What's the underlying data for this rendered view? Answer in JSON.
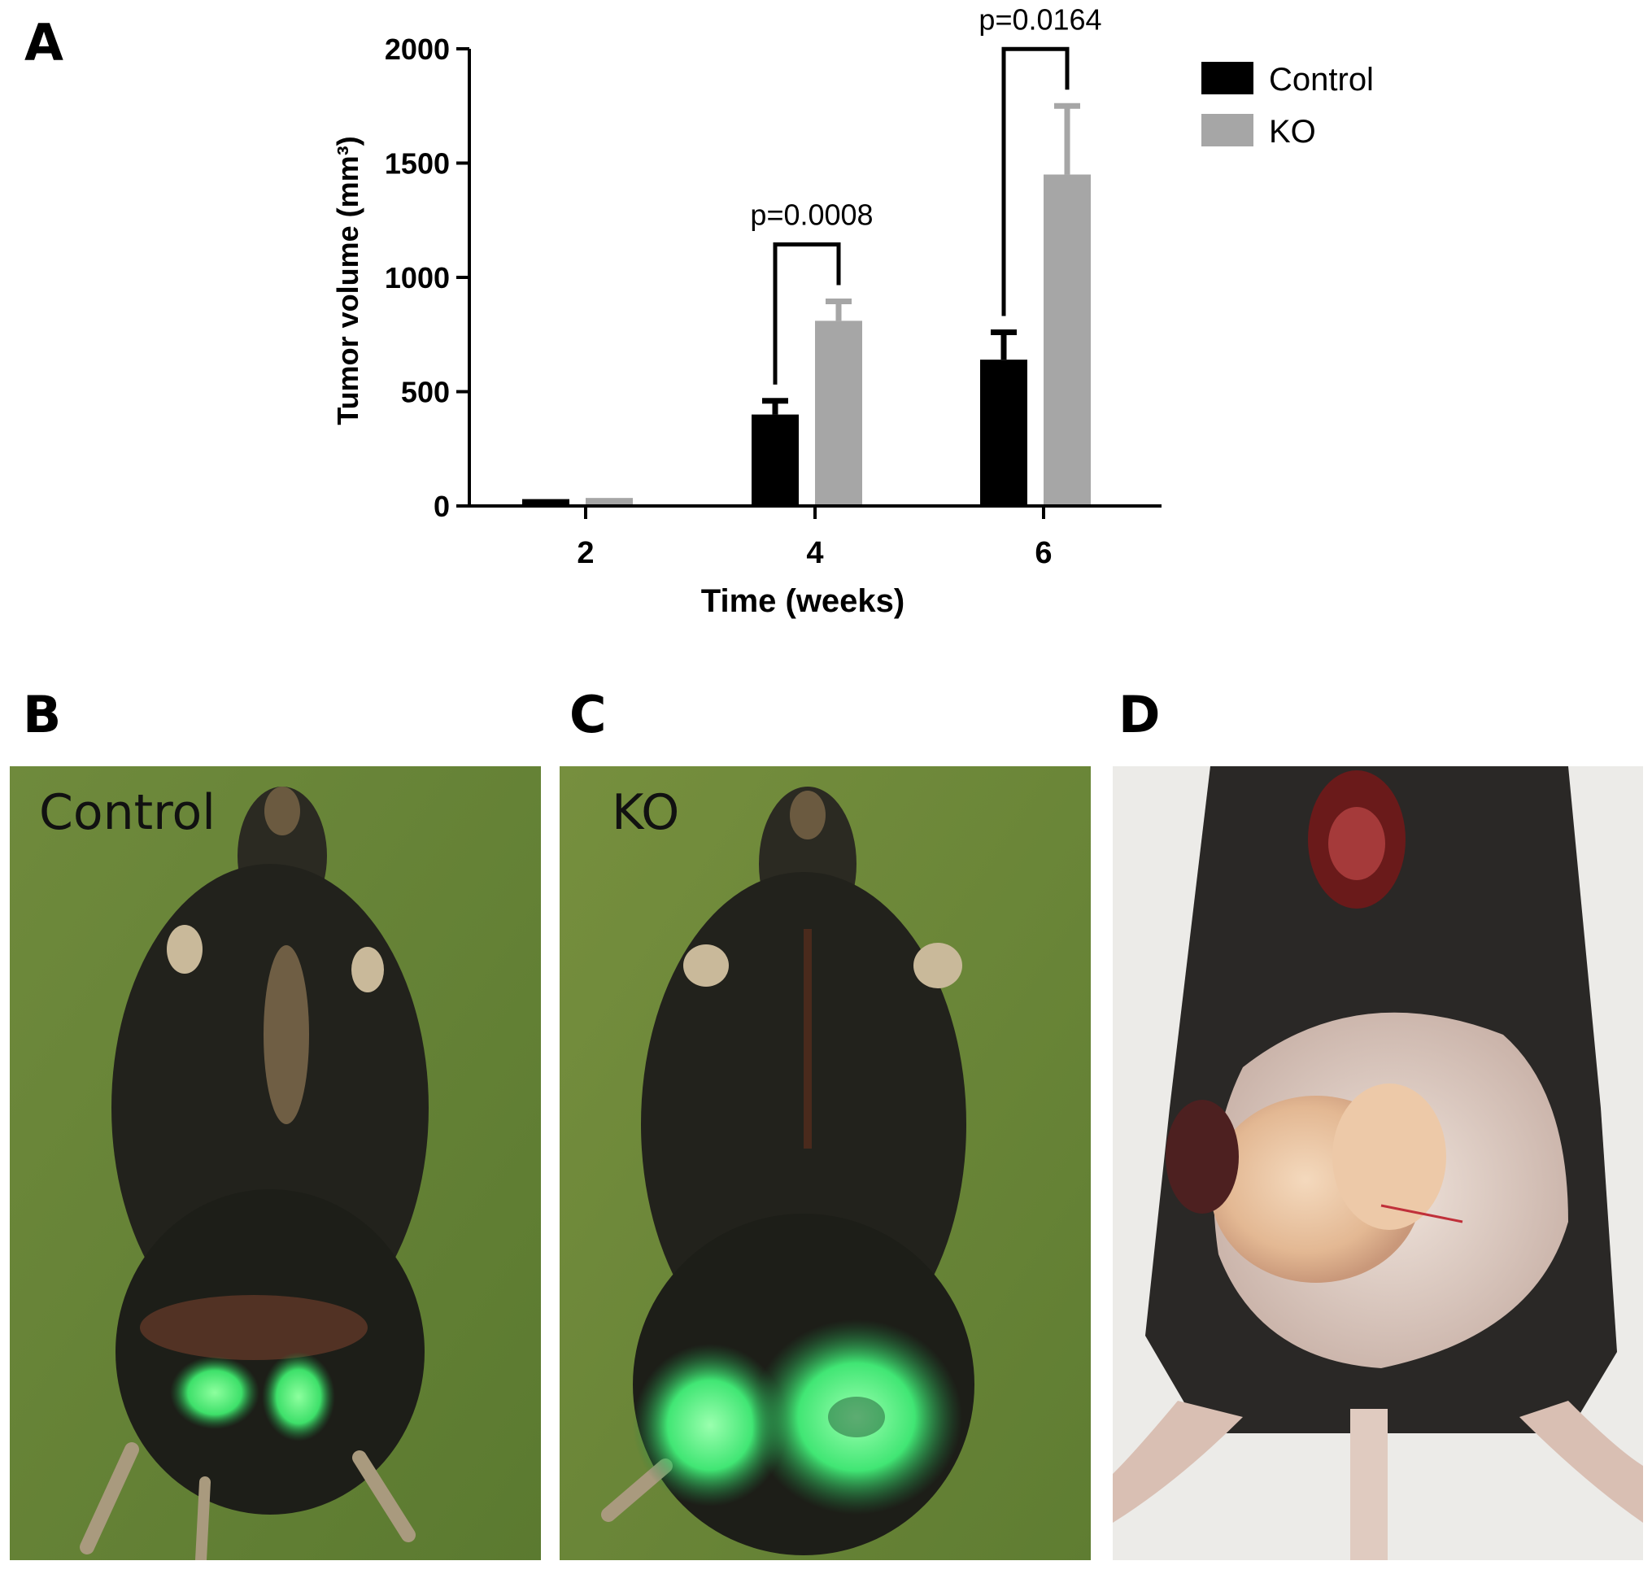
{
  "panels": {
    "a": "A",
    "b": "B",
    "c": "C",
    "d": "D"
  },
  "photo_labels": {
    "b": "Control",
    "c": "KO"
  },
  "colors": {
    "control": "#000000",
    "ko": "#a6a6a6"
  },
  "chart_data": {
    "type": "bar",
    "xlabel": "Time (weeks)",
    "ylabel": "Tumor volume (mm³)",
    "ylim": [
      0,
      2000
    ],
    "yticks": [
      0,
      500,
      1000,
      1500,
      2000
    ],
    "categories": [
      "2",
      "4",
      "6"
    ],
    "series": [
      {
        "name": "Control",
        "values": [
          30,
          400,
          640
        ],
        "errors": [
          0,
          60,
          120
        ]
      },
      {
        "name": "KO",
        "values": [
          35,
          810,
          1450
        ],
        "errors": [
          0,
          85,
          300
        ]
      }
    ],
    "annotations": [
      {
        "category": "4",
        "text": "p=0.0008"
      },
      {
        "category": "6",
        "text": "p=0.0164"
      }
    ],
    "legend_position": "top-right"
  }
}
